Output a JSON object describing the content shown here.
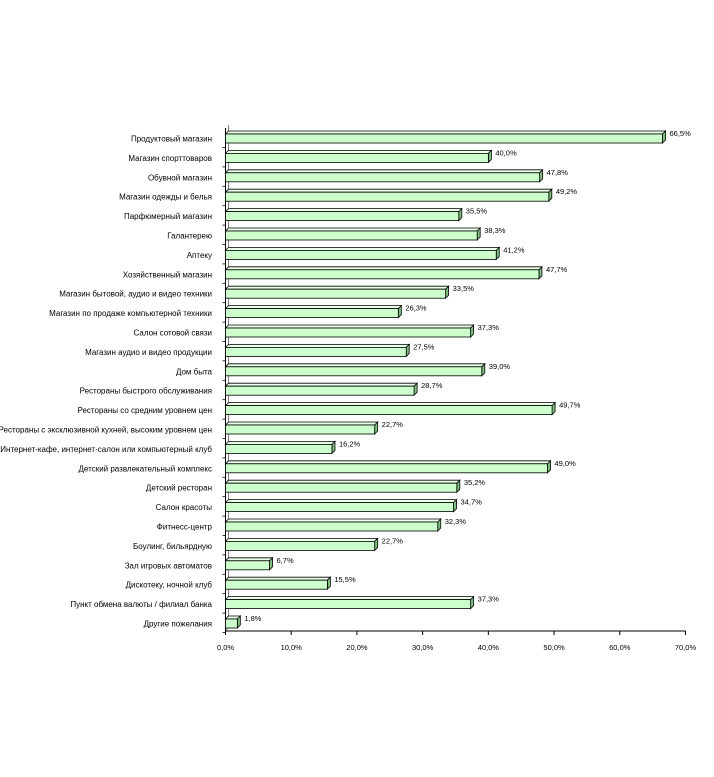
{
  "chart_data": {
    "type": "bar",
    "orientation": "horizontal",
    "bar_color": "#ccffcc",
    "bar_top_color": "#eaffea",
    "bar_side_color": "#7fbf7f",
    "categories": [
      "Продуктовый магазин",
      "Магазин спорттоваров",
      "Обувной магазин",
      "Магазин одежды и белья",
      "Парфюмерный магазин",
      "Галантерею",
      "Аптеку",
      "Хозяйственный магазин",
      "Магазин бытовой, аудио и видео техники",
      "Магазин по продаже компьютерной техники",
      "Салон сотовой связи",
      "Магазин аудио и видео продукции",
      "Дом быта",
      "Рестораны быстрого обслуживания",
      "Рестораны со средним уровнем цен",
      "Рестораны с эксклюзивной кухней, высоким уровнем цен",
      "Интернет-кафе, интернет-салон или компьютерный клуб",
      "Детский развлекательный комплекс",
      "Детский ресторан",
      "Салон красоты",
      "Фитнесс-центр",
      "Боулинг, бильярдную",
      "Зал игровых автоматов",
      "Дискотеку, ночной клуб",
      "Пункт обмена валюты / филиал банка",
      "Другие пожелания"
    ],
    "values": [
      66.5,
      40.0,
      47.8,
      49.2,
      35.5,
      38.3,
      41.2,
      47.7,
      33.5,
      26.3,
      37.3,
      27.5,
      39.0,
      28.7,
      49.7,
      22.7,
      16.2,
      49.0,
      35.2,
      34.7,
      32.3,
      22.7,
      6.7,
      15.5,
      37.3,
      1.8
    ],
    "value_labels": [
      "66,5%",
      "40,0%",
      "47,8%",
      "49,2%",
      "35,5%",
      "38,3%",
      "41,2%",
      "47,7%",
      "33,5%",
      "26,3%",
      "37,3%",
      "27,5%",
      "39,0%",
      "28,7%",
      "49,7%",
      "22,7%",
      "16,2%",
      "49,0%",
      "35,2%",
      "34,7%",
      "32,3%",
      "22,7%",
      "6,7%",
      "15,5%",
      "37,3%",
      "1,8%"
    ],
    "xlim": [
      0,
      70
    ],
    "x_ticks": [
      0,
      10,
      20,
      30,
      40,
      50,
      60,
      70
    ],
    "x_tick_labels": [
      "0,0%",
      "10,0%",
      "20,0%",
      "30,0%",
      "40,0%",
      "50,0%",
      "60,0%",
      "70,0%"
    ],
    "grid": false,
    "legend": "none"
  }
}
